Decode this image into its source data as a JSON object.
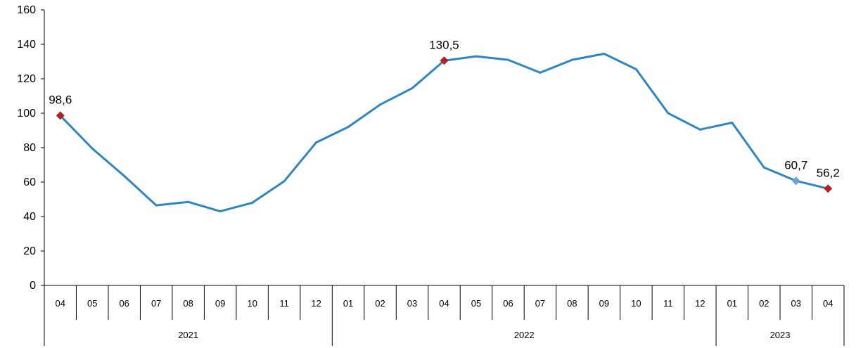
{
  "chart_data": {
    "type": "line",
    "ylim": [
      0,
      160
    ],
    "yticks": [
      0,
      20,
      40,
      60,
      80,
      100,
      120,
      140,
      160
    ],
    "grid": false,
    "x": [
      "04",
      "05",
      "06",
      "07",
      "08",
      "09",
      "10",
      "11",
      "12",
      "01",
      "02",
      "03",
      "04",
      "05",
      "06",
      "07",
      "08",
      "09",
      "10",
      "11",
      "12",
      "01",
      "02",
      "03",
      "04"
    ],
    "year_groups": [
      {
        "label": "2021",
        "count": 9
      },
      {
        "label": "2022",
        "count": 12
      },
      {
        "label": "2023",
        "count": 4
      }
    ],
    "series": [
      {
        "color": "#2e86c1",
        "values": [
          98.6,
          79.5,
          63.5,
          46.5,
          48.5,
          43,
          48,
          60.5,
          83,
          92,
          105,
          114.5,
          130.5,
          133,
          131,
          123.5,
          131,
          134.5,
          125.5,
          100,
          90.5,
          94.5,
          68.5,
          60.7,
          56.2
        ]
      }
    ],
    "highlights": [
      {
        "index": 0,
        "label": "98,6",
        "color": "#b22222"
      },
      {
        "index": 12,
        "label": "130,5",
        "color": "#b22222"
      },
      {
        "index": 23,
        "label": "60,7",
        "color": "#6aa3d5"
      },
      {
        "index": 24,
        "label": "56,2",
        "color": "#b22222"
      }
    ]
  }
}
